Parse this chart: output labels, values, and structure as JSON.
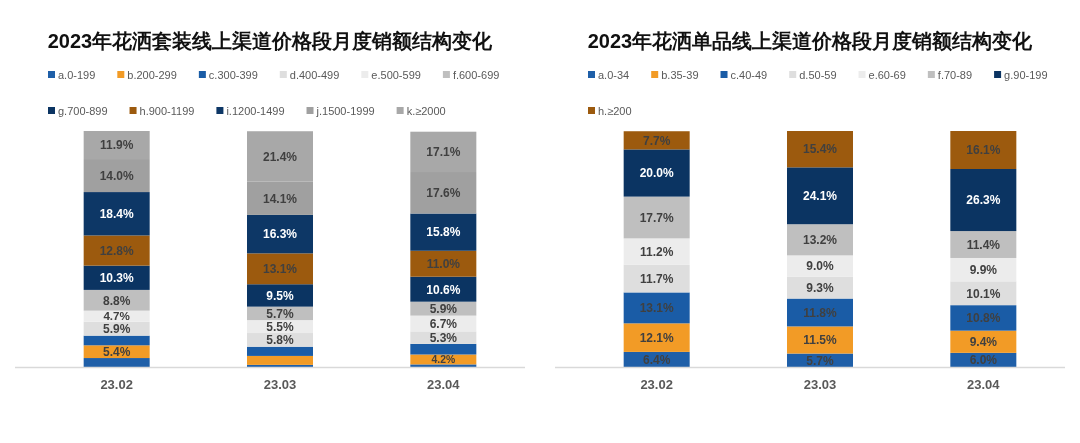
{
  "chart_data": [
    {
      "type": "bar",
      "stacked": true,
      "legend": "top",
      "title": "2023年花洒套装线上渠道价格段月度销额结构变化",
      "categories": [
        "23.02",
        "23.03",
        "23.04"
      ],
      "series": [
        {
          "name": "a.0-199",
          "color": "#1f5fa8",
          "values": [
            3.8,
            0.9,
            1.1
          ],
          "value_labels": [
            null,
            null,
            null
          ]
        },
        {
          "name": "b.200-299",
          "color": "#f29b26",
          "values": [
            5.4,
            3.8,
            4.2
          ],
          "value_labels": [
            "5.4%",
            null,
            "4.2%"
          ]
        },
        {
          "name": "c.300-399",
          "color": "#1a5ca6",
          "values": [
            4.1,
            3.9,
            4.5
          ],
          "value_labels": [
            null,
            null,
            null
          ]
        },
        {
          "name": "d.400-499",
          "color": "#dedede",
          "values": [
            5.9,
            5.8,
            5.3
          ],
          "value_labels": [
            "5.9%",
            "5.8%",
            "5.3%"
          ]
        },
        {
          "name": "e.500-599",
          "color": "#ececec",
          "values": [
            4.7,
            5.5,
            6.7
          ],
          "value_labels": [
            "4.7%",
            "5.5%",
            "6.7%"
          ]
        },
        {
          "name": "f.600-699",
          "color": "#bfbfbf",
          "values": [
            8.8,
            5.7,
            5.9
          ],
          "value_labels": [
            "8.8%",
            "5.7%",
            "5.9%"
          ]
        },
        {
          "name": "g.700-899",
          "color": "#0b3462",
          "values": [
            10.3,
            9.5,
            10.6
          ],
          "value_labels": [
            "10.3%",
            "9.5%",
            "10.6%"
          ]
        },
        {
          "name": "h.900-1199",
          "color": "#9c5a0e",
          "values": [
            12.8,
            13.1,
            11.0
          ],
          "value_labels": [
            "12.8%",
            "13.1%",
            "11.0%"
          ]
        },
        {
          "name": "i.1200-1499",
          "color": "#0d3766",
          "values": [
            18.4,
            16.3,
            15.8
          ],
          "value_labels": [
            "18.4%",
            "16.3%",
            "15.8%"
          ]
        },
        {
          "name": "j.1500-1999",
          "color": "#a0a0a0",
          "values": [
            14.0,
            14.1,
            17.6
          ],
          "value_labels": [
            "14.0%",
            "14.1%",
            "17.6%"
          ]
        },
        {
          "name": "k.≥2000",
          "color": "#a8a8a8",
          "values": [
            11.9,
            21.4,
            17.1
          ],
          "value_labels": [
            "11.9%",
            "21.4%",
            "17.1%"
          ]
        }
      ]
    },
    {
      "type": "bar",
      "stacked": true,
      "legend": "top",
      "title": "2023年花洒单品线上渠道价格段月度销额结构变化",
      "categories": [
        "23.02",
        "23.03",
        "23.04"
      ],
      "series": [
        {
          "name": "a.0-34",
          "color": "#1f5fa8",
          "values": [
            6.4,
            5.7,
            6.0
          ],
          "value_labels": [
            "6.4%",
            "5.7%",
            "6.0%"
          ]
        },
        {
          "name": "b.35-39",
          "color": "#f29b26",
          "values": [
            12.1,
            11.5,
            9.4
          ],
          "value_labels": [
            "12.1%",
            "11.5%",
            "9.4%"
          ]
        },
        {
          "name": "c.40-49",
          "color": "#1a5ca6",
          "values": [
            13.1,
            11.8,
            10.8
          ],
          "value_labels": [
            "13.1%",
            "11.8%",
            "10.8%"
          ]
        },
        {
          "name": "d.50-59",
          "color": "#dedede",
          "values": [
            11.7,
            9.3,
            10.1
          ],
          "value_labels": [
            "11.7%",
            "9.3%",
            "10.1%"
          ]
        },
        {
          "name": "e.60-69",
          "color": "#ececec",
          "values": [
            11.2,
            9.0,
            9.9
          ],
          "value_labels": [
            "11.2%",
            "9.0%",
            "9.9%"
          ]
        },
        {
          "name": "f.70-89",
          "color": "#bfbfbf",
          "values": [
            17.7,
            13.2,
            11.4
          ],
          "value_labels": [
            "17.7%",
            "13.2%",
            "11.4%"
          ]
        },
        {
          "name": "g.90-199",
          "color": "#0b3462",
          "values": [
            20.0,
            24.1,
            26.3
          ],
          "value_labels": [
            "20.0%",
            "24.1%",
            "26.3%"
          ]
        },
        {
          "name": "h.≥200",
          "color": "#9c5a0e",
          "values": [
            7.7,
            15.4,
            16.1
          ],
          "value_labels": [
            "7.7%",
            "15.4%",
            "16.1%"
          ]
        }
      ]
    }
  ]
}
